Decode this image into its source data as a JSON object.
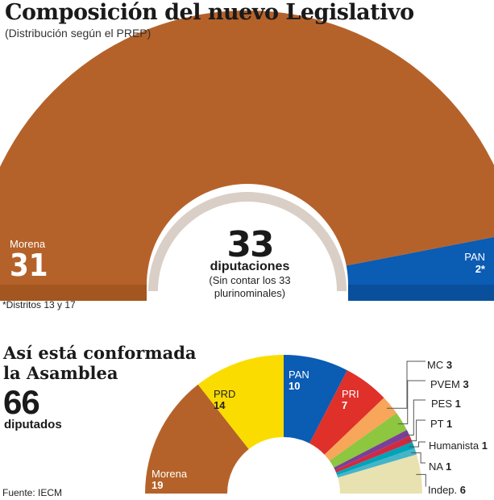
{
  "title": "Composición del nuevo Legislativo",
  "subtitle": "(Distribución según el PREP)",
  "colors": {
    "morena": "#b5622a",
    "pan": "#0b5cb3",
    "prd": "#fbdc00",
    "pri": "#e0302a",
    "mc": "#f7a65a",
    "pvem": "#8dc63f",
    "pes": "#7b3f98",
    "pt": "#d12a40",
    "humanista": "#00a3b8",
    "na": "#46b4c8",
    "indep": "#e8e2b0"
  },
  "chart_data": [
    {
      "type": "pie",
      "subtype": "semicircle",
      "title": "Composición del nuevo Legislativo",
      "categories": [
        "Morena",
        "PAN"
      ],
      "values": [
        31,
        2
      ],
      "value_labels": [
        "31",
        "2*"
      ],
      "total": "33",
      "total_unit": "diputaciones",
      "total_note": "(Sin contar los 33 plurinominales)"
    },
    {
      "type": "pie",
      "subtype": "semicircle",
      "title": "Así está conformada la Asamblea",
      "categories": [
        "Morena",
        "PRD",
        "PAN",
        "PRI",
        "MC",
        "PVEM",
        "PES",
        "PT",
        "Humanista",
        "NA",
        "Indep."
      ],
      "values": [
        19,
        14,
        10,
        7,
        3,
        3,
        1,
        1,
        1,
        1,
        6
      ],
      "total": "66",
      "total_unit": "diputados"
    }
  ],
  "footnote": "*Distritos 13 y 17",
  "source": "Fuente: IECM"
}
